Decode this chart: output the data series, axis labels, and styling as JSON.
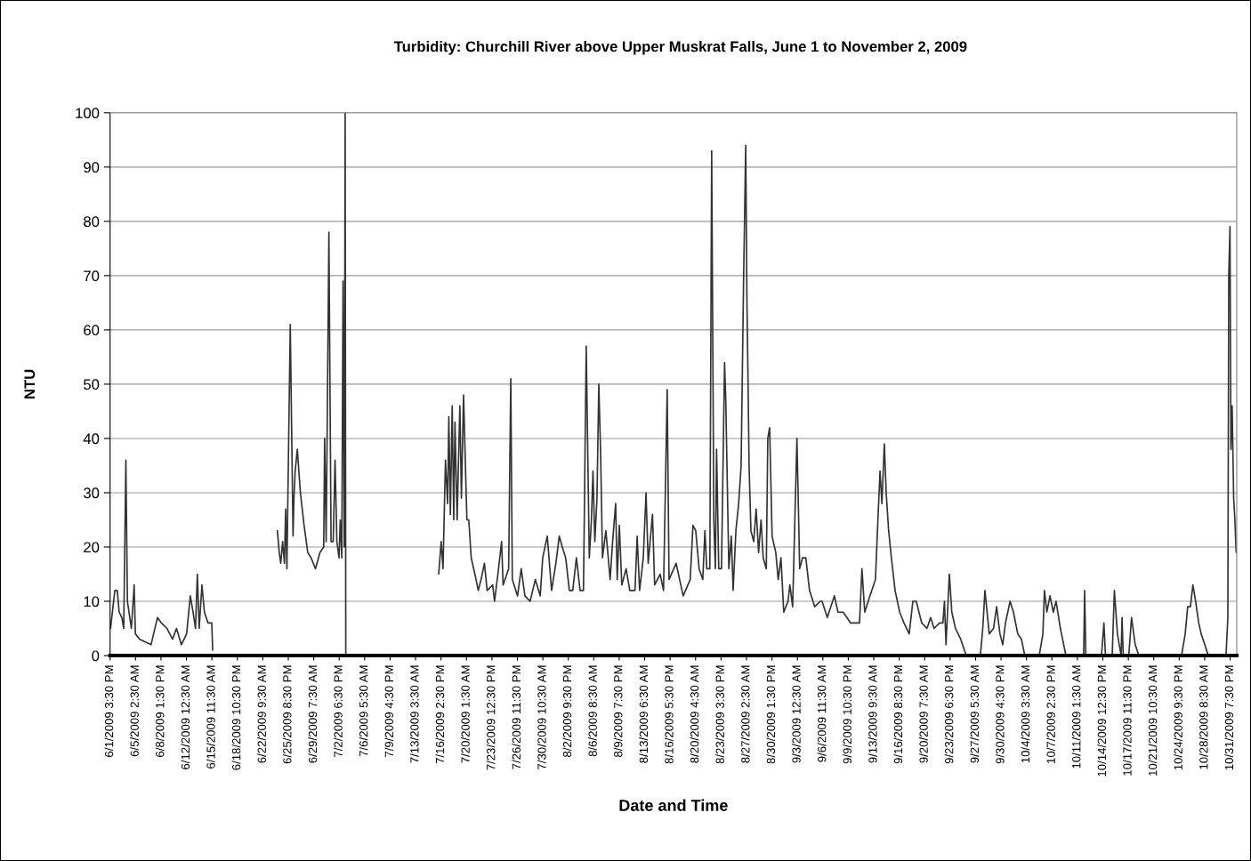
{
  "chart_data": {
    "type": "line",
    "title": "Turbidity: Churchill River above Upper Muskrat Falls, June 1 to November 2, 2009",
    "xlabel": "Date and Time",
    "ylabel": "NTU",
    "x": [
      "2009-06-01T17:00",
      "2009-06-02T07:00",
      "2009-06-02T15:00",
      "2009-06-02T21:00",
      "2009-06-03T06:00",
      "2009-06-03T12:00",
      "2009-06-03T19:00",
      "2009-06-04T00:00",
      "2009-06-04T13:00",
      "2009-06-04T22:00",
      "2009-06-05T02:00",
      "2009-06-05T16:00",
      "2009-06-07T05:00",
      "2009-06-08T02:00",
      "2009-06-08T15:00",
      "2009-06-09T09:00",
      "2009-06-10T03:00",
      "2009-06-10T16:00",
      "2009-06-11T08:00",
      "2009-06-12T01:00",
      "2009-06-12T13:00",
      "2009-06-12T22:00",
      "2009-06-13T06:00",
      "2009-06-13T12:00",
      "2009-06-13T18:00",
      "2009-06-14T03:00",
      "2009-06-14T11:00",
      "2009-06-14T23:00",
      "2009-06-15T11:00",
      "2009-06-15T14:00",
      "2009-06-20T00:00",
      "2009-06-24T09:00",
      "2009-06-24T15:00",
      "2009-06-24T20:00",
      "2009-06-25T02:00",
      "2009-06-25T08:00",
      "2009-06-25T12:00",
      "2009-06-25T16:00",
      "2009-06-26T03:00",
      "2009-06-26T12:00",
      "2009-06-26T15:00",
      "2009-06-26T19:00",
      "2009-06-27T02:00",
      "2009-06-27T12:00",
      "2009-06-28T00:00",
      "2009-06-28T12:00",
      "2009-06-28T23:00",
      "2009-06-29T13:00",
      "2009-06-30T04:00",
      "2009-06-30T16:00",
      "2009-06-30T19:00",
      "2009-07-01T00:00",
      "2009-07-01T09:00",
      "2009-07-01T16:00",
      "2009-07-01T23:00",
      "2009-07-02T05:00",
      "2009-07-02T11:00",
      "2009-07-02T18:00",
      "2009-07-02T22:00",
      "2009-07-03T03:00",
      "2009-07-03T07:00",
      "2009-07-03T11:00",
      "2009-07-03T14:00",
      "2009-07-03T16:00",
      "2009-07-10T00:00",
      "2009-07-16T07:00",
      "2009-07-16T15:00",
      "2009-07-16T21:00",
      "2009-07-17T05:00",
      "2009-07-17T12:00",
      "2009-07-17T16:00",
      "2009-07-17T21:00",
      "2009-07-18T03:00",
      "2009-07-18T08:00",
      "2009-07-18T12:00",
      "2009-07-18T19:00",
      "2009-07-19T00:00",
      "2009-07-19T04:00",
      "2009-07-19T09:00",
      "2009-07-19T16:00",
      "2009-07-20T00:00",
      "2009-07-20T03:00",
      "2009-07-20T09:00",
      "2009-07-20T17:00",
      "2009-07-21T05:00",
      "2009-07-21T16:00",
      "2009-07-22T01:00",
      "2009-07-22T12:00",
      "2009-07-22T21:00",
      "2009-07-23T15:00",
      "2009-07-23T21:00",
      "2009-07-24T08:00",
      "2009-07-24T20:00",
      "2009-07-25T01:00",
      "2009-07-25T19:00",
      "2009-07-26T02:00",
      "2009-07-26T07:00",
      "2009-07-27T00:00",
      "2009-07-27T12:00",
      "2009-07-28T00:00",
      "2009-07-28T17:00",
      "2009-07-29T10:00",
      "2009-07-30T02:00",
      "2009-07-30T10:00",
      "2009-07-31T01:00",
      "2009-07-31T15:00",
      "2009-08-01T05:00",
      "2009-08-01T16:00",
      "2009-08-02T02:00",
      "2009-08-02T13:00",
      "2009-08-03T01:00",
      "2009-08-03T12:00",
      "2009-08-04T00:00",
      "2009-08-04T12:00",
      "2009-08-04T23:00",
      "2009-08-05T08:00",
      "2009-08-05T18:00",
      "2009-08-06T01:00",
      "2009-08-06T06:00",
      "2009-08-06T12:00",
      "2009-08-06T19:00",
      "2009-08-07T01:00",
      "2009-08-07T07:00",
      "2009-08-07T13:00",
      "2009-08-08T00:00",
      "2009-08-08T14:00",
      "2009-08-08T22:00",
      "2009-08-09T08:00",
      "2009-08-09T13:00",
      "2009-08-09T20:00",
      "2009-08-10T04:00",
      "2009-08-10T18:00",
      "2009-08-11T06:00",
      "2009-08-11T23:00",
      "2009-08-12T06:00",
      "2009-08-12T14:00",
      "2009-08-13T02:00",
      "2009-08-13T11:00",
      "2009-08-13T18:00",
      "2009-08-14T08:00",
      "2009-08-14T15:00",
      "2009-08-15T09:00",
      "2009-08-15T20:00",
      "2009-08-16T08:00",
      "2009-08-16T14:00",
      "2009-08-17T13:00",
      "2009-08-18T12:00",
      "2009-08-19T11:00",
      "2009-08-19T20:00",
      "2009-08-20T05:00",
      "2009-08-20T16:00",
      "2009-08-21T04:00",
      "2009-08-21T11:00",
      "2009-08-21T17:00",
      "2009-08-22T03:00",
      "2009-08-22T09:00",
      "2009-08-22T16:00",
      "2009-08-22T21:00",
      "2009-08-23T01:00",
      "2009-08-23T08:00",
      "2009-08-23T17:00",
      "2009-08-24T03:00",
      "2009-08-24T07:00",
      "2009-08-24T17:00",
      "2009-08-25T01:00",
      "2009-08-25T07:00",
      "2009-08-25T16:00",
      "2009-08-26T01:00",
      "2009-08-26T09:00",
      "2009-08-26T17:00",
      "2009-08-27T00:00",
      "2009-08-27T04:00",
      "2009-08-27T07:00",
      "2009-08-27T11:00",
      "2009-08-27T17:00",
      "2009-08-28T02:00",
      "2009-08-28T10:00",
      "2009-08-28T18:00",
      "2009-08-29T02:00",
      "2009-08-29T09:00",
      "2009-08-29T19:00",
      "2009-08-30T00:00",
      "2009-08-30T06:00",
      "2009-08-30T14:00",
      "2009-08-31T02:00",
      "2009-08-31T10:00",
      "2009-08-31T19:00",
      "2009-09-01T04:00",
      "2009-09-01T18:00",
      "2009-09-02T00:00",
      "2009-09-02T09:00",
      "2009-09-02T23:00",
      "2009-09-03T08:00",
      "2009-09-03T17:00",
      "2009-09-04T04:00",
      "2009-09-04T16:00",
      "2009-09-05T09:00",
      "2009-09-06T03:00",
      "2009-09-06T09:00",
      "2009-09-07T02:00",
      "2009-09-08T01:00",
      "2009-09-08T13:00",
      "2009-09-09T06:00",
      "2009-09-10T06:00",
      "2009-09-11T11:00",
      "2009-09-11T19:00",
      "2009-09-12T04:00",
      "2009-09-12T21:00",
      "2009-09-13T15:00",
      "2009-09-13T23:00",
      "2009-09-14T06:00",
      "2009-09-14T12:00",
      "2009-09-14T20:00",
      "2009-09-15T02:00",
      "2009-09-15T10:00",
      "2009-09-15T19:00",
      "2009-09-16T07:00",
      "2009-09-16T22:00",
      "2009-09-17T12:00",
      "2009-09-18T05:00",
      "2009-09-18T17:00",
      "2009-09-19T04:00",
      "2009-09-19T22:00",
      "2009-09-20T15:00",
      "2009-09-21T03:00",
      "2009-09-21T14:00",
      "2009-09-22T08:00",
      "2009-09-22T19:00",
      "2009-09-23T00:00",
      "2009-09-23T05:00",
      "2009-09-23T16:00",
      "2009-09-24T00:00",
      "2009-09-24T12:00",
      "2009-09-25T05:00",
      "2009-09-25T23:00",
      "2009-09-27T21:00",
      "2009-09-28T05:00",
      "2009-09-28T12:00",
      "2009-09-29T02:00",
      "2009-09-29T16:00",
      "2009-09-30T02:00",
      "2009-09-30T13:00",
      "2009-09-30T22:00",
      "2009-10-01T07:00",
      "2009-10-01T22:00",
      "2009-10-02T09:00",
      "2009-10-02T23:00",
      "2009-10-03T11:00",
      "2009-10-03T22:00",
      "2009-10-05T21:00",
      "2009-10-06T09:00",
      "2009-10-06T14:00",
      "2009-10-06T22:00",
      "2009-10-07T08:00",
      "2009-10-07T19:00",
      "2009-10-08T04:00",
      "2009-10-08T18:00",
      "2009-10-09T12:00",
      "2009-10-11T22:00",
      "2009-10-12T01:00",
      "2009-10-12T05:00",
      "2009-10-14T08:00",
      "2009-10-14T16:00",
      "2009-10-14T21:00",
      "2009-10-15T19:00",
      "2009-10-16T02:00",
      "2009-10-16T12:00",
      "2009-10-17T00:00",
      "2009-10-17T03:00",
      "2009-10-17T07:00",
      "2009-10-18T01:00",
      "2009-10-18T10:00",
      "2009-10-18T22:00",
      "2009-10-19T10:00",
      "2009-10-25T05:00",
      "2009-10-25T17:00",
      "2009-10-26T01:00",
      "2009-10-26T10:00",
      "2009-10-26T18:00",
      "2009-10-27T03:00",
      "2009-10-27T13:00",
      "2009-10-27T21:00",
      "2009-10-28T09:00",
      "2009-10-28T20:00",
      "2009-10-31T06:00",
      "2009-10-31T12:00",
      "2009-10-31T15:00",
      "2009-10-31T19:00",
      "2009-10-31T22:00",
      "2009-11-01T02:00",
      "2009-11-01T07:00",
      "2009-11-01T11:00",
      "2009-11-01T15:00"
    ],
    "series": [
      {
        "color": "#333333",
        "values": [
          5,
          12,
          12,
          8,
          7,
          5,
          36,
          10,
          5,
          13,
          4,
          3,
          2,
          7,
          6,
          5,
          3,
          5,
          2,
          4,
          11,
          8,
          5,
          15,
          5,
          13,
          8,
          6,
          6,
          1,
          null,
          23,
          19,
          17,
          21,
          17,
          27,
          16,
          61,
          22,
          29,
          34,
          38,
          30,
          24,
          19,
          18,
          16,
          19,
          20,
          40,
          21,
          78,
          21,
          21,
          36,
          21,
          18,
          25,
          18,
          69,
          20,
          100,
          0,
          null,
          15,
          21,
          16,
          36,
          28,
          44,
          26,
          46,
          25,
          43,
          25,
          37,
          46,
          29,
          48,
          31,
          25,
          25,
          18,
          15,
          12,
          14,
          17,
          12,
          13,
          10,
          15,
          21,
          13,
          16,
          51,
          14,
          11,
          16,
          11,
          10,
          14,
          11,
          18,
          22,
          12,
          17,
          22,
          20,
          18,
          12,
          12,
          18,
          12,
          12,
          57,
          18,
          25,
          34,
          21,
          29,
          50,
          37,
          18,
          23,
          14,
          21,
          28,
          14,
          24,
          13,
          16,
          12,
          12,
          22,
          12,
          18,
          30,
          17,
          26,
          13,
          15,
          12,
          49,
          14,
          17,
          11,
          14,
          24,
          23,
          16,
          14,
          23,
          16,
          16,
          93,
          25,
          16,
          38,
          16,
          16,
          54,
          47,
          16,
          22,
          12,
          23,
          28,
          35,
          69,
          94,
          65,
          53,
          35,
          23,
          21,
          27,
          19,
          25,
          18,
          16,
          40,
          42,
          22,
          19,
          14,
          18,
          8,
          10,
          13,
          9,
          40,
          16,
          18,
          18,
          12,
          9,
          10,
          10,
          7,
          11,
          8,
          8,
          6,
          6,
          16,
          8,
          11,
          14,
          25,
          34,
          28,
          39,
          30,
          23,
          18,
          12,
          8,
          6,
          4,
          10,
          10,
          6,
          5,
          7,
          5,
          6,
          6,
          10,
          2,
          15,
          8,
          5,
          3,
          0,
          0,
          5,
          12,
          4,
          5,
          9,
          4,
          2,
          6,
          10,
          8,
          4,
          3,
          0,
          0,
          4,
          12,
          8,
          11,
          8,
          10,
          5,
          0,
          0,
          12,
          0,
          0,
          6,
          0,
          0,
          12,
          4,
          0,
          7,
          0,
          0,
          7,
          2,
          0,
          0,
          4,
          9,
          9,
          13,
          10,
          6,
          4,
          2,
          0,
          0,
          7,
          70,
          79,
          38,
          46,
          29,
          25,
          19
        ]
      }
    ],
    "xlim": [
      "2009-06-01T15:30",
      "2009-11-01T17:00"
    ],
    "xticks": [
      {
        "value": "2009-06-01T15:30",
        "label": "6/1/2009 3:30 PM"
      },
      {
        "value": "2009-06-05T02:30",
        "label": "6/5/2009 2:30 AM"
      },
      {
        "value": "2009-06-08T13:30",
        "label": "6/8/2009 1:30 PM"
      },
      {
        "value": "2009-06-12T00:30",
        "label": "6/12/2009 12:30 AM"
      },
      {
        "value": "2009-06-15T11:30",
        "label": "6/15/2009 11:30 AM"
      },
      {
        "value": "2009-06-18T22:30",
        "label": "6/18/2009 10:30 PM"
      },
      {
        "value": "2009-06-22T09:30",
        "label": "6/22/2009 9:30 AM"
      },
      {
        "value": "2009-06-25T20:30",
        "label": "6/25/2009 8:30 PM"
      },
      {
        "value": "2009-06-29T07:30",
        "label": "6/29/2009 7:30 AM"
      },
      {
        "value": "2009-07-02T18:30",
        "label": "7/2/2009 6:30 PM"
      },
      {
        "value": "2009-07-06T05:30",
        "label": "7/6/2009 5:30 AM"
      },
      {
        "value": "2009-07-09T16:30",
        "label": "7/9/2009 4:30 PM"
      },
      {
        "value": "2009-07-13T03:30",
        "label": "7/13/2009 3:30 AM"
      },
      {
        "value": "2009-07-16T14:30",
        "label": "7/16/2009 2:30 PM"
      },
      {
        "value": "2009-07-20T01:30",
        "label": "7/20/2009 1:30 AM"
      },
      {
        "value": "2009-07-23T12:30",
        "label": "7/23/2009 12:30 PM"
      },
      {
        "value": "2009-07-26T23:30",
        "label": "7/26/2009 11:30 PM"
      },
      {
        "value": "2009-07-30T10:30",
        "label": "7/30/2009 10:30 AM"
      },
      {
        "value": "2009-08-02T21:30",
        "label": "8/2/2009 9:30 PM"
      },
      {
        "value": "2009-08-06T08:30",
        "label": "8/6/2009 8:30 AM"
      },
      {
        "value": "2009-08-09T19:30",
        "label": "8/9/2009 7:30 PM"
      },
      {
        "value": "2009-08-13T06:30",
        "label": "8/13/2009 6:30 AM"
      },
      {
        "value": "2009-08-16T17:30",
        "label": "8/16/2009 5:30 PM"
      },
      {
        "value": "2009-08-20T04:30",
        "label": "8/20/2009 4:30 AM"
      },
      {
        "value": "2009-08-23T15:30",
        "label": "8/23/2009 3:30 PM"
      },
      {
        "value": "2009-08-27T02:30",
        "label": "8/27/2009 2:30 AM"
      },
      {
        "value": "2009-08-30T13:30",
        "label": "8/30/2009 1:30 PM"
      },
      {
        "value": "2009-09-03T00:30",
        "label": "9/3/2009 12:30 AM"
      },
      {
        "value": "2009-09-06T11:30",
        "label": "9/6/2009 11:30 AM"
      },
      {
        "value": "2009-09-09T22:30",
        "label": "9/9/2009 10:30 PM"
      },
      {
        "value": "2009-09-13T09:30",
        "label": "9/13/2009 9:30 AM"
      },
      {
        "value": "2009-09-16T20:30",
        "label": "9/16/2009 8:30 PM"
      },
      {
        "value": "2009-09-20T07:30",
        "label": "9/20/2009 7:30 AM"
      },
      {
        "value": "2009-09-23T18:30",
        "label": "9/23/2009 6:30 PM"
      },
      {
        "value": "2009-09-27T05:30",
        "label": "9/27/2009 5:30 AM"
      },
      {
        "value": "2009-09-30T16:30",
        "label": "9/30/2009 4:30 PM"
      },
      {
        "value": "2009-10-04T03:30",
        "label": "10/4/2009 3:30 AM"
      },
      {
        "value": "2009-10-07T14:30",
        "label": "10/7/2009 2:30 PM"
      },
      {
        "value": "2009-10-11T01:30",
        "label": "10/11/2009 1:30 AM"
      },
      {
        "value": "2009-10-14T12:30",
        "label": "10/14/2009 12:30 PM"
      },
      {
        "value": "2009-10-17T23:30",
        "label": "10/17/2009 11:30 PM"
      },
      {
        "value": "2009-10-21T10:30",
        "label": "10/21/2009 10:30 AM"
      },
      {
        "value": "2009-10-24T21:30",
        "label": "10/24/2009 9:30 PM"
      },
      {
        "value": "2009-10-28T08:30",
        "label": "10/28/2009 8:30 AM"
      },
      {
        "value": "2009-10-31T19:30",
        "label": "10/31/2009 7:30 PM"
      }
    ],
    "ylim": [
      0,
      100
    ],
    "yticks": [
      0,
      10,
      20,
      30,
      40,
      50,
      60,
      70,
      80,
      90,
      100
    ],
    "grid": "y",
    "legend": false,
    "marker": "none",
    "line_style": "solid"
  }
}
